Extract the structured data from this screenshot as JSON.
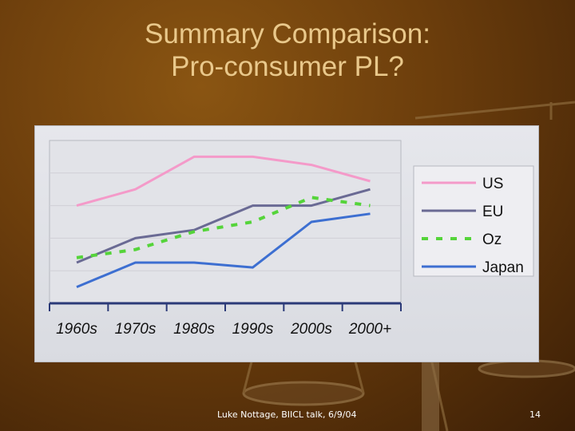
{
  "slide": {
    "title_line1": "Summary Comparison:",
    "title_line2": "Pro-consumer PL?",
    "footer": "Luke Nottage, BIICL talk, 6/9/04",
    "page_number": "14"
  },
  "colors": {
    "title": "#e9c88b",
    "panel": "#e3e4e9",
    "axis": "#2b3a78"
  },
  "chart_data": {
    "type": "line",
    "title": "",
    "xlabel": "",
    "ylabel": "",
    "categories": [
      "1960s",
      "1970s",
      "1980s",
      "1990s",
      "2000s",
      "2000+"
    ],
    "ylim": [
      0,
      10
    ],
    "grid": true,
    "legend_position": "right",
    "series": [
      {
        "name": "US",
        "color": "#f49ac9",
        "dash": false,
        "values": [
          6.0,
          7.0,
          9.0,
          9.0,
          8.5,
          7.5
        ]
      },
      {
        "name": "EU",
        "color": "#6a6a94",
        "dash": false,
        "values": [
          2.5,
          4.0,
          4.5,
          6.0,
          6.0,
          7.0
        ]
      },
      {
        "name": "Oz",
        "color": "#55d43a",
        "dash": true,
        "values": [
          2.8,
          3.3,
          4.4,
          5.0,
          6.5,
          6.0
        ]
      },
      {
        "name": "Japan",
        "color": "#3d6fd1",
        "dash": false,
        "values": [
          1.0,
          2.5,
          2.5,
          2.2,
          5.0,
          5.5
        ]
      }
    ]
  }
}
